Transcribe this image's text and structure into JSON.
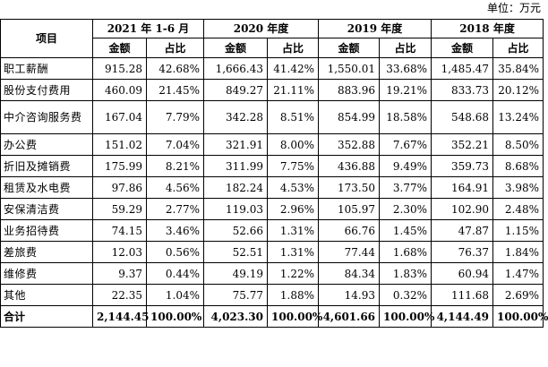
{
  "unit": "单位：万元",
  "header": {
    "item": "项目",
    "periods": [
      "2021 年 1-6 月",
      "2020 年度",
      "2019 年度",
      "2018 年度"
    ],
    "amount": "金额",
    "ratio": "占比"
  },
  "rows": [
    {
      "name": "职工薪酬",
      "cells": [
        "915.28",
        "42.68%",
        "1,666.43",
        "41.42%",
        "1,550.01",
        "33.68%",
        "1,485.47",
        "35.84%"
      ]
    },
    {
      "name": "股份支付费用",
      "cells": [
        "460.09",
        "21.45%",
        "849.27",
        "21.11%",
        "883.96",
        "19.21%",
        "833.73",
        "20.12%"
      ]
    },
    {
      "name": "中介咨询服务费",
      "cells": [
        "167.04",
        "7.79%",
        "342.28",
        "8.51%",
        "854.99",
        "18.58%",
        "548.68",
        "13.24%"
      ]
    },
    {
      "name": "办公费",
      "cells": [
        "151.02",
        "7.04%",
        "321.91",
        "8.00%",
        "352.88",
        "7.67%",
        "352.21",
        "8.50%"
      ]
    },
    {
      "name": "折旧及摊销费",
      "cells": [
        "175.99",
        "8.21%",
        "311.99",
        "7.75%",
        "436.88",
        "9.49%",
        "359.73",
        "8.68%"
      ]
    },
    {
      "name": "租赁及水电费",
      "cells": [
        "97.86",
        "4.56%",
        "182.24",
        "4.53%",
        "173.50",
        "3.77%",
        "164.91",
        "3.98%"
      ]
    },
    {
      "name": "安保清洁费",
      "cells": [
        "59.29",
        "2.77%",
        "119.03",
        "2.96%",
        "105.97",
        "2.30%",
        "102.90",
        "2.48%"
      ]
    },
    {
      "name": "业务招待费",
      "cells": [
        "74.15",
        "3.46%",
        "52.66",
        "1.31%",
        "66.76",
        "1.45%",
        "47.87",
        "1.15%"
      ]
    },
    {
      "name": "差旅费",
      "cells": [
        "12.03",
        "0.56%",
        "52.51",
        "1.31%",
        "77.44",
        "1.68%",
        "76.37",
        "1.84%"
      ]
    },
    {
      "name": "维修费",
      "cells": [
        "9.37",
        "0.44%",
        "49.19",
        "1.22%",
        "84.34",
        "1.83%",
        "60.94",
        "1.47%"
      ]
    },
    {
      "name": "其他",
      "cells": [
        "22.35",
        "1.04%",
        "75.77",
        "1.88%",
        "14.93",
        "0.32%",
        "111.68",
        "2.69%"
      ]
    }
  ],
  "total": {
    "name": "合计",
    "cells": [
      "2,144.45",
      "100.00%",
      "4,023.30",
      "100.00%",
      "4,601.66",
      "100.00%",
      "4,144.49",
      "100.00%"
    ]
  }
}
